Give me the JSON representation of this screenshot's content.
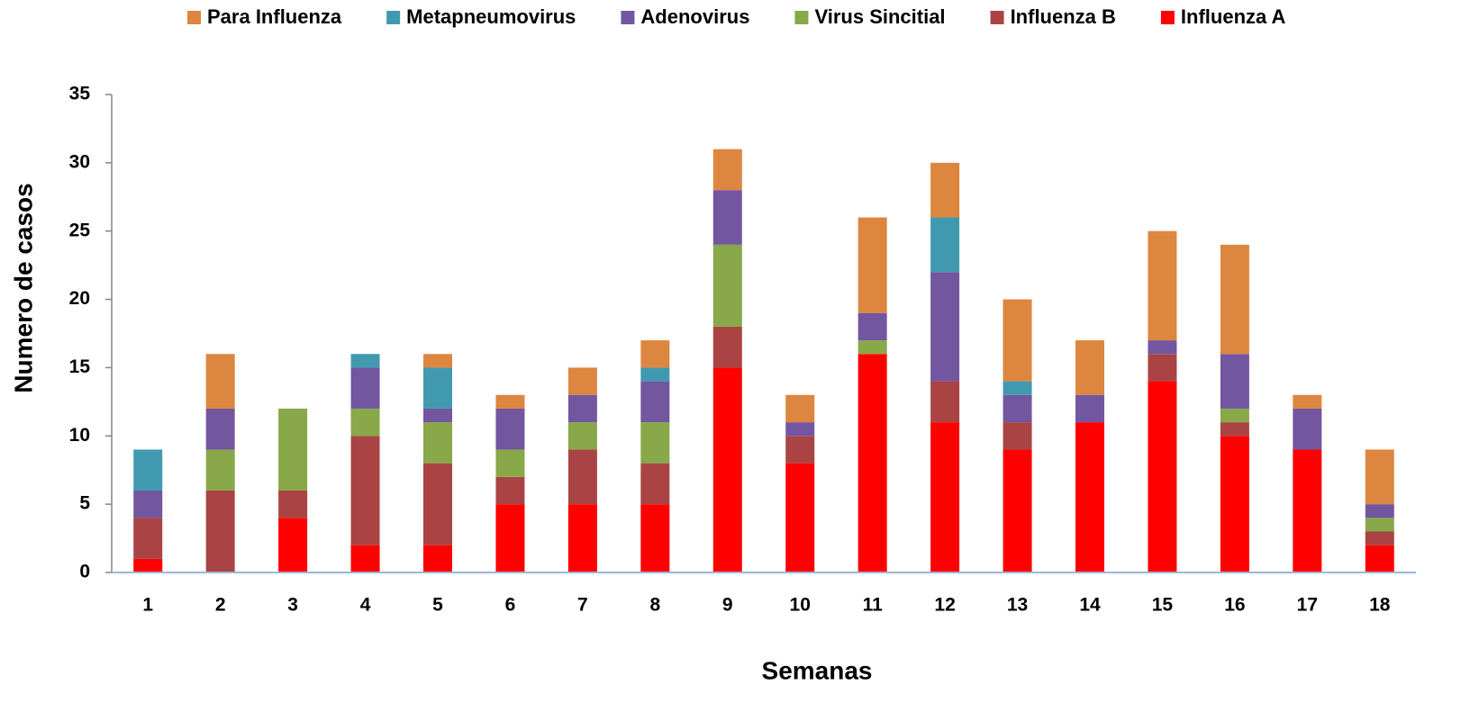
{
  "chart_data": {
    "type": "stacked_bar",
    "x_label": "Semanas",
    "y_label": "Numero de casos",
    "categories": [
      "1",
      "2",
      "3",
      "4",
      "5",
      "6",
      "7",
      "8",
      "9",
      "10",
      "11",
      "12",
      "13",
      "14",
      "15",
      "16",
      "17",
      "18"
    ],
    "series": [
      {
        "name": "Para Influenza",
        "color": "#dd8640",
        "values": [
          0,
          4,
          0,
          0,
          1,
          1,
          2,
          2,
          3,
          2,
          7,
          4,
          6,
          4,
          8,
          8,
          1,
          4
        ]
      },
      {
        "name": "Metapneumovirus",
        "color": "#4199b0",
        "values": [
          3,
          0,
          0,
          1,
          3,
          0,
          0,
          1,
          0,
          0,
          0,
          4,
          1,
          0,
          0,
          0,
          0,
          0
        ]
      },
      {
        "name": "Adenovirus",
        "color": "#7356a0",
        "values": [
          2,
          3,
          0,
          3,
          1,
          3,
          2,
          3,
          4,
          1,
          2,
          8,
          2,
          2,
          1,
          4,
          3,
          1
        ]
      },
      {
        "name": "Virus Sincitial",
        "color": "#88a84a",
        "values": [
          0,
          3,
          6,
          2,
          3,
          2,
          2,
          3,
          6,
          0,
          1,
          0,
          0,
          0,
          0,
          1,
          0,
          1
        ]
      },
      {
        "name": "Influenza B",
        "color": "#aa4444",
        "values": [
          3,
          6,
          2,
          8,
          6,
          2,
          4,
          3,
          3,
          2,
          0,
          3,
          2,
          0,
          2,
          1,
          0,
          1
        ]
      },
      {
        "name": "Influenza A",
        "color": "#ff0000",
        "values": [
          1,
          0,
          4,
          2,
          2,
          5,
          5,
          5,
          15,
          8,
          16,
          11,
          9,
          11,
          14,
          10,
          9,
          2
        ]
      }
    ],
    "ylim": [
      0,
      35
    ],
    "yticks": [
      0,
      5,
      10,
      15,
      20,
      25,
      30,
      35
    ],
    "grid": false
  }
}
